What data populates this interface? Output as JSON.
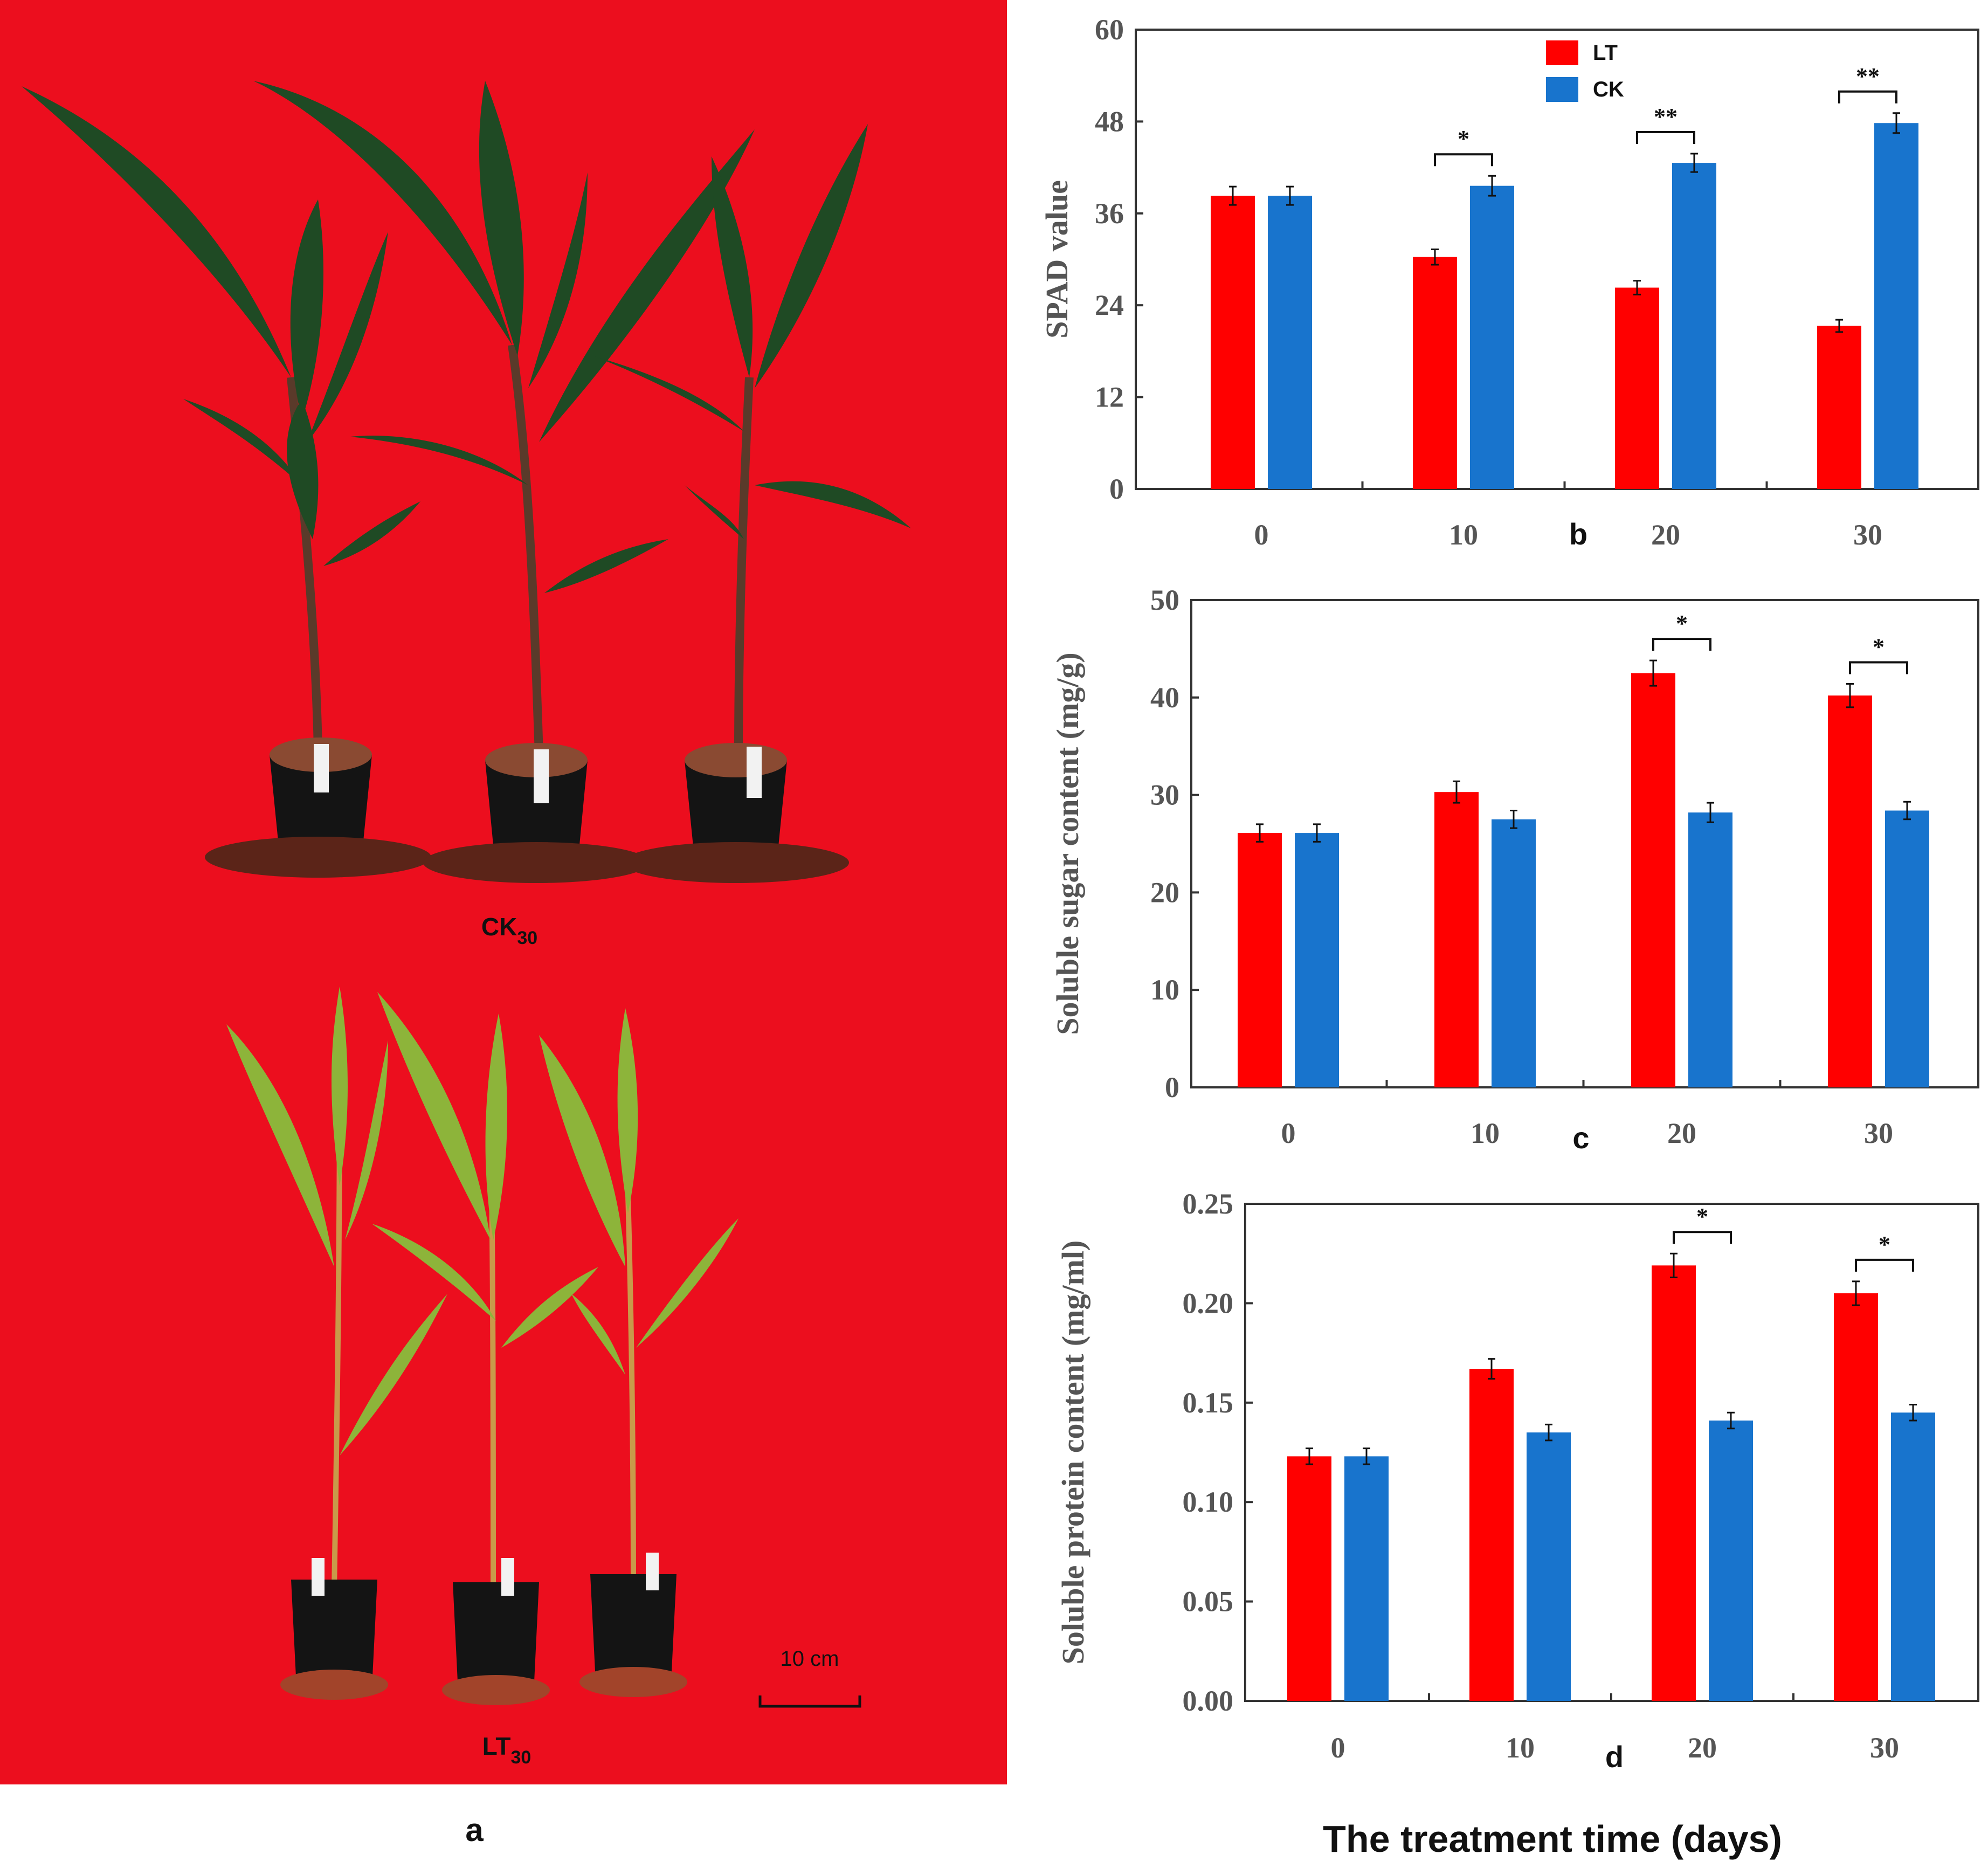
{
  "figure": {
    "panel_a": {
      "label": "a",
      "top_label": "CK",
      "top_label_sub": "30",
      "bottom_label": "LT",
      "bottom_label_sub": "30",
      "scale_bar": "10 cm",
      "background_color": "#EC0E1E",
      "leaf_color_ck": "#1F4A24",
      "leaf_color_lt": "#8DB43A"
    },
    "shared_xlabel": "The treatment time (days)"
  },
  "colors": {
    "LT": "#FF0000",
    "CK": "#1874CD",
    "axis": "#333333"
  },
  "chart_data": [
    {
      "panel": "b",
      "type": "bar",
      "title": "",
      "xlabel": "",
      "ylabel": "SPAD value",
      "categories": [
        "0",
        "10",
        "20",
        "30"
      ],
      "yticks": [
        "0",
        "12",
        "24",
        "36",
        "48",
        "60"
      ],
      "ylim": [
        0,
        60
      ],
      "legend": {
        "placement": "top-center",
        "items": [
          "LT",
          "CK"
        ]
      },
      "series": [
        {
          "name": "LT",
          "values": [
            38.3,
            30.3,
            26.3,
            21.3
          ],
          "errors": [
            1.2,
            1.0,
            0.9,
            0.8
          ]
        },
        {
          "name": "CK",
          "values": [
            38.3,
            39.6,
            42.6,
            47.8
          ],
          "errors": [
            1.2,
            1.3,
            1.2,
            1.3
          ]
        }
      ],
      "significance": [
        "",
        "*",
        "**",
        "**"
      ]
    },
    {
      "panel": "c",
      "type": "bar",
      "title": "",
      "xlabel": "",
      "ylabel": "Soluble sugar content (mg/g)",
      "categories": [
        "0",
        "10",
        "20",
        "30"
      ],
      "yticks": [
        "0",
        "10",
        "20",
        "30",
        "40",
        "50"
      ],
      "ylim": [
        0,
        50
      ],
      "series": [
        {
          "name": "LT",
          "values": [
            26.1,
            30.3,
            42.5,
            40.2
          ],
          "errors": [
            0.9,
            1.1,
            1.3,
            1.2
          ]
        },
        {
          "name": "CK",
          "values": [
            26.1,
            27.5,
            28.2,
            28.4
          ],
          "errors": [
            0.9,
            0.9,
            1.0,
            0.9
          ]
        }
      ],
      "significance": [
        "",
        "",
        "*",
        "*"
      ]
    },
    {
      "panel": "d",
      "type": "bar",
      "title": "",
      "xlabel": "",
      "ylabel": "Soluble protein content (mg/ml)",
      "categories": [
        "0",
        "10",
        "20",
        "30"
      ],
      "yticks": [
        "0.00",
        "0.05",
        "0.10",
        "0.15",
        "0.20",
        "0.25"
      ],
      "ylim": [
        0,
        0.25
      ],
      "series": [
        {
          "name": "LT",
          "values": [
            0.123,
            0.167,
            0.219,
            0.205
          ],
          "errors": [
            0.004,
            0.005,
            0.006,
            0.006
          ]
        },
        {
          "name": "CK",
          "values": [
            0.123,
            0.135,
            0.141,
            0.145
          ],
          "errors": [
            0.004,
            0.004,
            0.004,
            0.004
          ]
        }
      ],
      "significance": [
        "",
        "",
        "*",
        "*"
      ]
    }
  ]
}
